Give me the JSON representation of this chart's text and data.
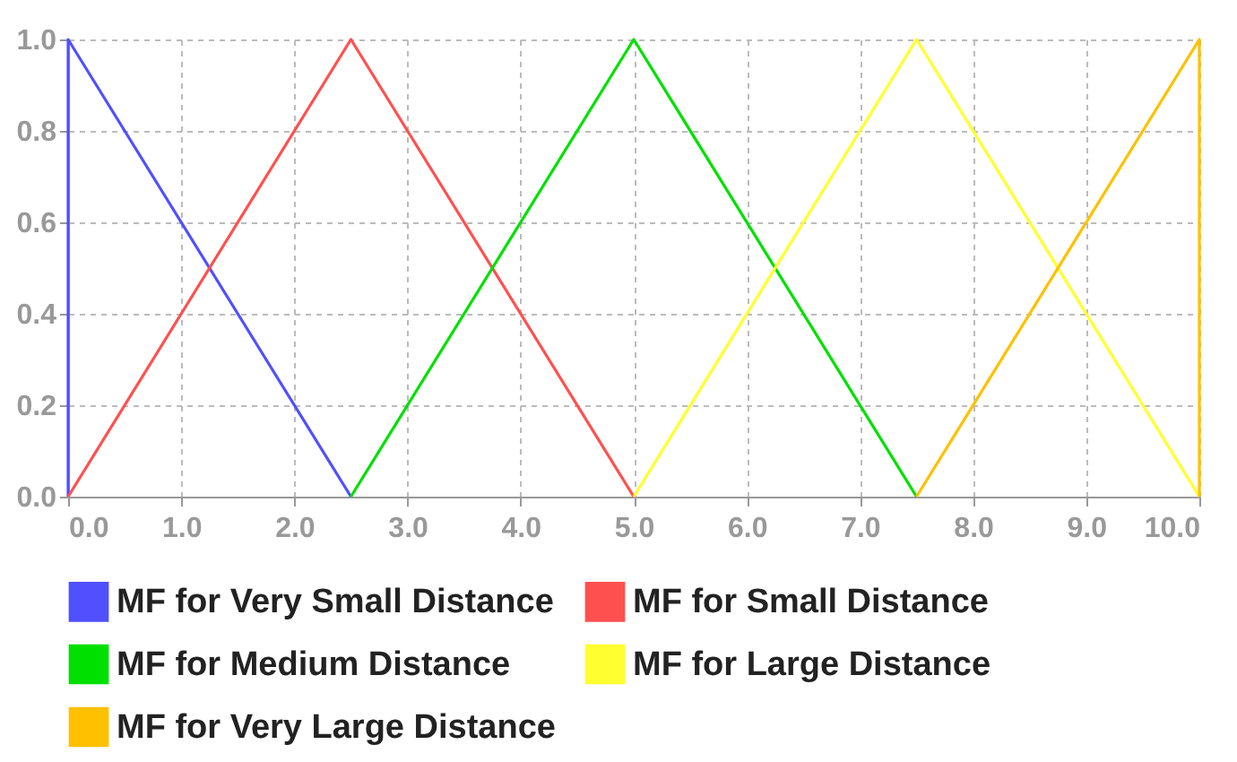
{
  "chart_data": {
    "type": "line",
    "legend": "bottom",
    "grid": true,
    "marker": "none",
    "line_style": "solid",
    "xlim": [
      0,
      10
    ],
    "ylim": [
      0,
      1
    ],
    "xticks": [
      {
        "value": 0,
        "label": "0.0"
      },
      {
        "value": 1,
        "label": "1.0"
      },
      {
        "value": 2,
        "label": "2.0"
      },
      {
        "value": 3,
        "label": "3.0"
      },
      {
        "value": 4,
        "label": "4.0"
      },
      {
        "value": 5,
        "label": "5.0"
      },
      {
        "value": 6,
        "label": "6.0"
      },
      {
        "value": 7,
        "label": "7.0"
      },
      {
        "value": 8,
        "label": "8.0"
      },
      {
        "value": 9,
        "label": "9.0"
      },
      {
        "value": 10,
        "label": "10.0"
      }
    ],
    "yticks": [
      {
        "value": 0,
        "label": "0.0"
      },
      {
        "value": 0.2,
        "label": "0.2"
      },
      {
        "value": 0.4,
        "label": "0.4"
      },
      {
        "value": 0.6,
        "label": "0.6"
      },
      {
        "value": 0.8,
        "label": "0.8"
      },
      {
        "value": 1,
        "label": "1.0"
      }
    ],
    "series": [
      {
        "name": "MF for Very Small Distance",
        "color": "#5050ff",
        "x": [
          0,
          0,
          2.5
        ],
        "values": [
          0,
          1,
          0
        ]
      },
      {
        "name": "MF for Small Distance",
        "color": "#ff5050",
        "x": [
          0,
          2.5,
          5
        ],
        "values": [
          0,
          1,
          0
        ]
      },
      {
        "name": "MF for Medium Distance",
        "color": "#00e000",
        "x": [
          2.5,
          5,
          7.5
        ],
        "values": [
          0,
          1,
          0
        ]
      },
      {
        "name": "MF for Large Distance",
        "color": "#ffff30",
        "x": [
          5,
          7.5,
          10
        ],
        "values": [
          0,
          1,
          0
        ]
      },
      {
        "name": "MF for Very Large Distance",
        "color": "#ffc000",
        "x": [
          7.5,
          10,
          10
        ],
        "values": [
          0,
          1,
          0
        ]
      }
    ]
  }
}
